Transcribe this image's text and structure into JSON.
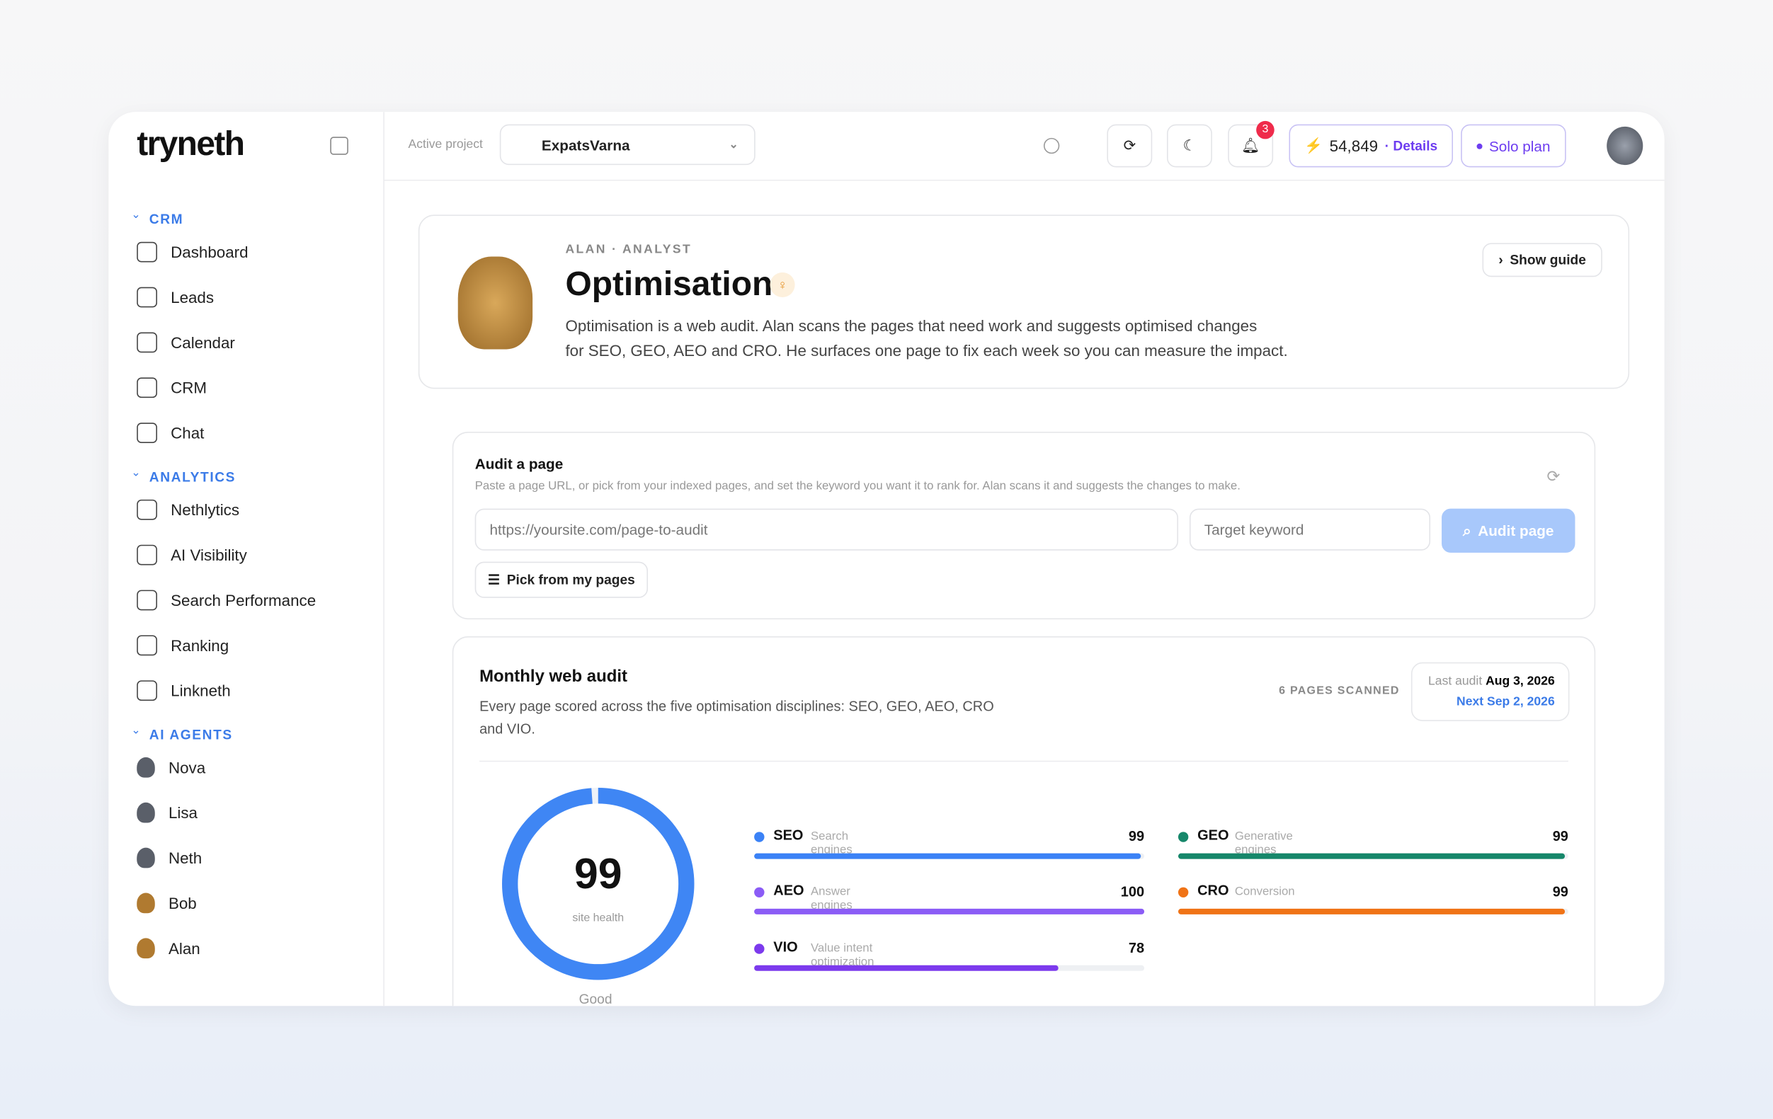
{
  "brand": "tryneth",
  "topbar": {
    "project_label": "Active project",
    "project": "ExpatsVarna",
    "notifications": "3",
    "credits": "54,849",
    "details": "· Details",
    "plan": "Solo plan"
  },
  "sidebar": {
    "sections": [
      {
        "title": "CRM",
        "items": [
          "Dashboard",
          "Leads",
          "Calendar",
          "CRM",
          "Chat"
        ]
      },
      {
        "title": "ANALYTICS",
        "items": [
          "Nethlytics",
          "AI Visibility",
          "Search Performance",
          "Ranking",
          "Linkneth"
        ]
      },
      {
        "title": "AI AGENTS",
        "items": [
          "Nova",
          "Lisa",
          "Neth",
          "Bob",
          "Alan"
        ]
      }
    ]
  },
  "header": {
    "eyebrow": "ALAN · ANALYST",
    "title": "Optimisation",
    "description_1": "Optimisation is a web audit. Alan scans the pages that need work and suggests optimised changes",
    "description_2": "for SEO, GEO, AEO and CRO. He surfaces one page to fix each week so you can measure the impact.",
    "guide": "Show guide"
  },
  "audit": {
    "title": "Audit a page",
    "description": "Paste a page URL, or pick from your indexed pages, and set the keyword you want it to rank for. Alan scans it and suggests the changes to make.",
    "url_placeholder": "https://yoursite.com/page-to-audit",
    "keyword_placeholder": "Target keyword",
    "button": "Audit page",
    "pick": "Pick from my pages"
  },
  "monthly": {
    "title": "Monthly web audit",
    "description_1": "Every page scored across the five optimisation disciplines: SEO, GEO, AEO, CRO",
    "description_2": "and VIO.",
    "pages_scanned": "6 PAGES SCANNED",
    "last_label": "Last audit",
    "last_date": "Aug 3, 2026",
    "next": "Next Sep 2, 2026",
    "score": 99,
    "score_label": "site health",
    "rating": "Good",
    "metrics": [
      {
        "name": "SEO",
        "desc": "Search engines",
        "value": 99,
        "color": "#3b82f6"
      },
      {
        "name": "GEO",
        "desc": "Generative engines",
        "value": 99,
        "color": "#16876a"
      },
      {
        "name": "AEO",
        "desc": "Answer engines",
        "value": 100,
        "color": "#8b5cf6"
      },
      {
        "name": "CRO",
        "desc": "Conversion",
        "value": 99,
        "color": "#f07316"
      },
      {
        "name": "VIO",
        "desc": "Value intent optimization",
        "value": 78,
        "color": "#7c3aed"
      }
    ]
  }
}
